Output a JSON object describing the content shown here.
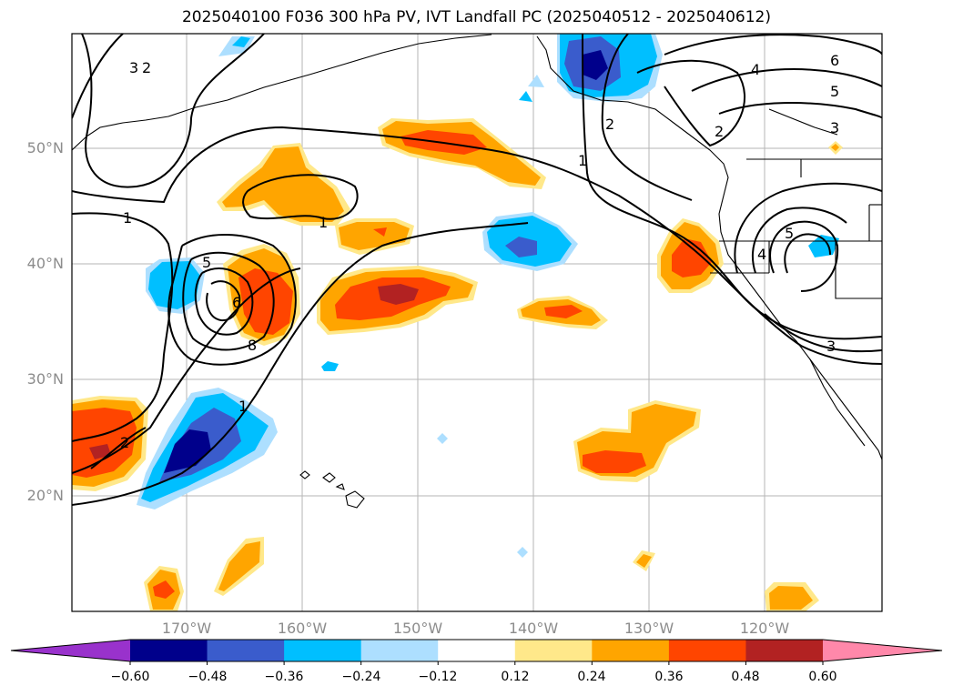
{
  "title": "2025040100 F036 300 hPa PV, IVT Landfall PC (2025040512 - 2025040612)",
  "map": {
    "lat_ticks": [
      "50°N",
      "40°N",
      "30°N",
      "20°N"
    ],
    "lon_ticks": [
      "170°W",
      "160°W",
      "150°W",
      "140°W",
      "130°W",
      "120°W"
    ],
    "contour_labels": [
      "3",
      "2",
      "1",
      "1",
      "5",
      "6",
      "8",
      "1",
      "2",
      "1",
      "2",
      "4",
      "6",
      "5",
      "3",
      "2",
      "5",
      "4",
      "3"
    ]
  },
  "colorbar": {
    "labels": [
      "−0.60",
      "−0.48",
      "−0.36",
      "−0.24",
      "−0.12",
      "0.12",
      "0.24",
      "0.36",
      "0.48",
      "0.60"
    ],
    "colors": [
      "#9932cc",
      "#00008b",
      "#3a5ccc",
      "#00bfff",
      "#addfff",
      "#ffffff",
      "#ffe88a",
      "#ffa500",
      "#ff4500",
      "#b22222",
      "#ff88aa"
    ]
  }
}
